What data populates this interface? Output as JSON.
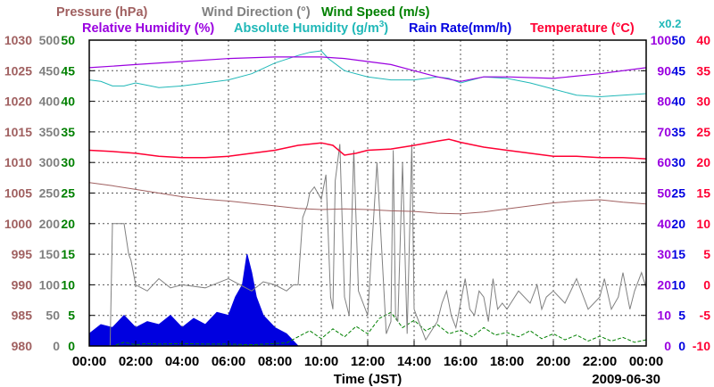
{
  "chart_data": {
    "type": "line",
    "date": "2009-06-30",
    "xlabel": "Time (JST)",
    "x_ticks": [
      "00:00",
      "02:00",
      "04:00",
      "06:00",
      "08:00",
      "10:00",
      "12:00",
      "14:00",
      "16:00",
      "18:00",
      "20:00",
      "22:00",
      "00:00"
    ],
    "x_range_hours": [
      0,
      24
    ],
    "legend": {
      "pressure": "Pressure (hPa)",
      "wind_direction": "Wind Direction (°)",
      "wind_speed": "Wind Speed (m/s)",
      "relative_humidity": "Relative Humidity (%)",
      "absolute_humidity_prefix": "Absolute Humidity (g/m",
      "absolute_humidity_sup": "3",
      "absolute_humidity_suffix": ")",
      "rain_rate": "Rain Rate(mm/h)",
      "temperature": "Temperature (°C)",
      "ah_scale": "x0.2"
    },
    "colors": {
      "pressure": "#a06060",
      "wind_direction": "#808080",
      "wind_speed": "#008000",
      "relative_humidity": "#9a00e0",
      "absolute_humidity": "#20b8b8",
      "rain_rate": "#0000e0",
      "temperature": "#ff0033"
    },
    "axes": {
      "pressure": {
        "min": 980,
        "max": 1030,
        "ticks": [
          "1030",
          "1025",
          "1020",
          "1015",
          "1010",
          "1005",
          "1000",
          "995",
          "990",
          "985",
          "980"
        ]
      },
      "wind_direction": {
        "min": 0,
        "max": 500,
        "ticks": [
          "500",
          "450",
          "400",
          "350",
          "300",
          "250",
          "200",
          "150",
          "100",
          "50",
          "0"
        ]
      },
      "wind_speed": {
        "min": 0,
        "max": 50,
        "ticks": [
          "50",
          "45",
          "40",
          "35",
          "30",
          "25",
          "20",
          "15",
          "10",
          "5",
          "0"
        ]
      },
      "relative_humidity": {
        "min": 0,
        "max": 100,
        "ticks": [
          "100",
          "90",
          "80",
          "70",
          "60",
          "50",
          "40",
          "30",
          "20",
          "10",
          "0"
        ]
      },
      "rain_rate": {
        "min": 0,
        "max": 50,
        "ticks": [
          "50",
          "45",
          "40",
          "35",
          "30",
          "25",
          "20",
          "15",
          "10",
          "5",
          "0"
        ]
      },
      "temperature": {
        "min": -10,
        "max": 40,
        "ticks": [
          "40",
          "35",
          "30",
          "25",
          "20",
          "15",
          "10",
          "5",
          "0",
          "-5",
          "-10"
        ]
      }
    },
    "series": {
      "relative_humidity": {
        "t": [
          0,
          1,
          2,
          4,
          6,
          8,
          9,
          10,
          11,
          12,
          13,
          14,
          15,
          16,
          17,
          18,
          20,
          22,
          24
        ],
        "v": [
          91,
          91.5,
          92,
          93,
          94,
          94.5,
          94.5,
          94.5,
          94,
          93,
          92,
          90,
          88,
          86.5,
          88,
          88,
          87.5,
          89,
          91
        ]
      },
      "absolute_humidity_x5": {
        "t": [
          0,
          0.5,
          1,
          1.5,
          2,
          3,
          4,
          5,
          6,
          7,
          8,
          9,
          9.5,
          10,
          10.3,
          11,
          12,
          13,
          14,
          15,
          15.5,
          16,
          17,
          18,
          19,
          20,
          21,
          22,
          23,
          24
        ],
        "v": [
          87,
          86.5,
          85,
          85,
          86,
          84.5,
          85,
          86,
          87,
          89,
          92.5,
          95,
          96,
          96.5,
          94,
          90,
          88,
          87,
          87,
          88,
          87.5,
          86,
          88,
          87.5,
          86,
          84,
          82,
          81.5,
          82,
          82.5
        ]
      },
      "temperature": {
        "t": [
          0,
          1,
          2,
          3,
          4,
          5,
          6,
          7,
          8,
          9,
          10,
          10.5,
          11,
          11.5,
          12,
          13,
          14,
          15,
          15.5,
          16,
          17,
          18,
          19,
          20,
          21,
          22,
          23,
          24
        ],
        "v": [
          22,
          21.8,
          21.5,
          21,
          20.8,
          20.8,
          21,
          21.5,
          22,
          22.8,
          23.2,
          22.8,
          21.2,
          21.5,
          22,
          22.2,
          22.8,
          23.5,
          23.8,
          23.3,
          22.5,
          22,
          21.5,
          21,
          21,
          20.8,
          20.8,
          20.6
        ]
      },
      "pressure": {
        "t": [
          0,
          1,
          2,
          3,
          4,
          5,
          6,
          7,
          8,
          9,
          10,
          11,
          12,
          13,
          14,
          15,
          16,
          17,
          18,
          19,
          20,
          21,
          22,
          23,
          24
        ],
        "v": [
          1006.7,
          1006.2,
          1005.6,
          1005,
          1004.4,
          1004,
          1003.7,
          1003.3,
          1002.9,
          1002.5,
          1002.3,
          1002.4,
          1002.3,
          1002.1,
          1002,
          1001.7,
          1001.6,
          1001.9,
          1002.4,
          1002.9,
          1003.4,
          1003.7,
          1003.9,
          1003.5,
          1003.2
        ]
      },
      "wind_direction": {
        "t": [
          0,
          0.9,
          1,
          1.5,
          1.7,
          1.8,
          2,
          2.5,
          3,
          3.5,
          4,
          5,
          6,
          7,
          7.5,
          8,
          8.5,
          8.8,
          9,
          9.2,
          9.4,
          9.5,
          9.7,
          10,
          10.2,
          10.4,
          10.5,
          10.6,
          10.8,
          11,
          11.2,
          11.4,
          11.6,
          12,
          12.4,
          12.8,
          13,
          13.1,
          13.2,
          13.3,
          13.5,
          13.7,
          13.9,
          14,
          14.2,
          14.5,
          15,
          15.2,
          15.4,
          15.6,
          15.8,
          16,
          16.2,
          16.4,
          16.6,
          16.8,
          17,
          17.2,
          17.4,
          17.6,
          17.8,
          18,
          18.5,
          19,
          19.3,
          19.5,
          19.7,
          20,
          20.5,
          21,
          21.5,
          22,
          22.2,
          22.5,
          22.8,
          23,
          23.3,
          23.5,
          23.8,
          24
        ],
        "v": [
          0,
          0,
          200,
          200,
          150,
          140,
          100,
          90,
          110,
          95,
          100,
          95,
          110,
          90,
          105,
          100,
          90,
          100,
          100,
          210,
          230,
          250,
          260,
          240,
          280,
          80,
          60,
          270,
          330,
          80,
          50,
          320,
          90,
          50,
          300,
          20,
          40,
          320,
          50,
          40,
          300,
          20,
          330,
          60,
          40,
          10,
          40,
          70,
          90,
          50,
          30,
          70,
          110,
          60,
          50,
          90,
          80,
          40,
          110,
          60,
          70,
          60,
          90,
          70,
          100,
          60,
          80,
          90,
          70,
          110,
          60,
          80,
          110,
          60,
          80,
          120,
          60,
          90,
          120,
          95
        ]
      },
      "wind_speed": {
        "t": [
          0,
          1,
          1.5,
          2,
          2.5,
          3,
          4,
          5,
          6,
          7,
          8,
          8.5,
          9,
          9.5,
          10,
          10.5,
          11,
          11.5,
          12,
          12.5,
          13,
          13.5,
          14,
          14.5,
          15,
          15.5,
          16,
          16.5,
          17,
          17.5,
          18,
          18.5,
          19,
          19.5,
          20,
          20.5,
          21,
          21.5,
          22,
          22.5,
          23,
          23.5,
          24
        ],
        "v": [
          0,
          0,
          0.6,
          0.2,
          0.4,
          0.3,
          0.4,
          0.3,
          0.3,
          0.2,
          0.4,
          0.5,
          1.5,
          2.5,
          1.2,
          2.8,
          1.5,
          3.2,
          2,
          4.5,
          5.5,
          3,
          4.2,
          2.5,
          3.5,
          2,
          2.6,
          1.5,
          3,
          1.8,
          2.2,
          1.5,
          2.5,
          1.2,
          2,
          1,
          1.8,
          0.8,
          1.6,
          0.8,
          1.4,
          0.6,
          1
        ]
      },
      "rain_rate": {
        "t": [
          0,
          0.5,
          1,
          1.5,
          2,
          2.5,
          3,
          3.5,
          4,
          4.5,
          5,
          5.5,
          6,
          6.3,
          6.6,
          6.8,
          7,
          7.2,
          7.5,
          8,
          8.5,
          9
        ],
        "v": [
          2,
          3.5,
          3,
          5,
          3,
          4,
          3.5,
          5,
          3,
          4.5,
          3.5,
          5.5,
          5,
          8,
          10,
          15,
          12,
          8,
          5,
          3,
          2,
          0
        ]
      }
    }
  }
}
